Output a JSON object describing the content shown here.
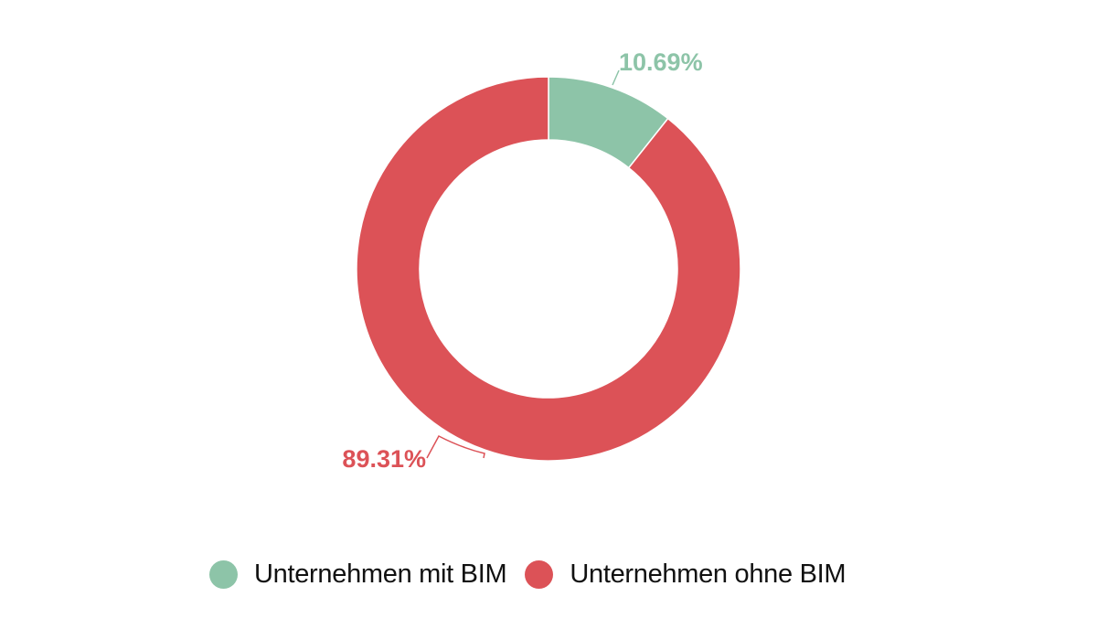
{
  "chart_data": {
    "type": "pie",
    "variant": "donut",
    "categories": [
      "Unternehmen mit BIM",
      "Unternehmen ohne BIM"
    ],
    "values": [
      10.69,
      89.31
    ],
    "labels": [
      "10.69%",
      "89.31%"
    ],
    "colors": [
      "#8dc4a8",
      "#dc5257"
    ],
    "legend": "bottom"
  }
}
